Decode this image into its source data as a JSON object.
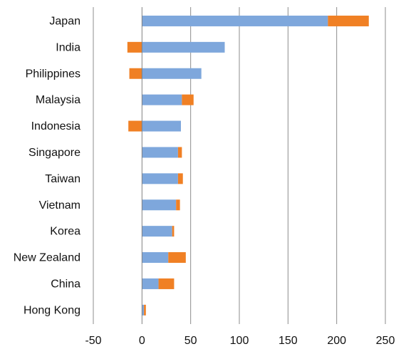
{
  "chart_data": {
    "type": "bar",
    "orientation": "horizontal",
    "stacked": true,
    "title": "",
    "xlabel": "",
    "ylabel": "",
    "categories": [
      "Japan",
      "India",
      "Philippines",
      "Malaysia",
      "Indonesia",
      "Singapore",
      "Taiwan",
      "Vietnam",
      "Korea",
      "New Zealand",
      "China",
      "Hong Kong"
    ],
    "series": [
      {
        "color": "#7ea7dc",
        "values": [
          191,
          85,
          61,
          41,
          40,
          37,
          37,
          35,
          31,
          27,
          17,
          2
        ]
      },
      {
        "color": "#f08024",
        "values": [
          42,
          -15,
          -13,
          12,
          -14,
          4,
          5,
          4,
          2,
          18,
          16,
          2
        ]
      }
    ],
    "xlim": [
      -50,
      250
    ],
    "xticks": [
      -50,
      0,
      50,
      100,
      150,
      200,
      250
    ],
    "grid": "vertical",
    "legend": "none"
  }
}
